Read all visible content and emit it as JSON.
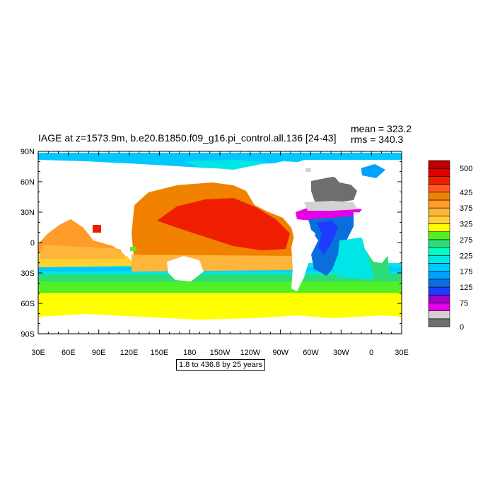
{
  "title": "IAGE at z=1573.9m, b.e20.B1850.f09_g16.pi_control.all.136 [24-43]",
  "stats": {
    "mean": "mean = 323.2",
    "rms": "rms = 340.3"
  },
  "range_note": "1.8 to 436.8 by 25 years",
  "lon_labels": [
    "30E",
    "60E",
    "90E",
    "120E",
    "150E",
    "180",
    "150W",
    "120W",
    "90W",
    "60W",
    "30W",
    "0",
    "30E"
  ],
  "lat_labels": [
    "90N",
    "60N",
    "30N",
    "0",
    "30S",
    "60S",
    "90S"
  ],
  "colorbar": {
    "colors": [
      "#6e6e6e",
      "#d2d2d2",
      "#e600e6",
      "#a000c8",
      "#1e3cff",
      "#0a6edc",
      "#00a0ff",
      "#00c8ff",
      "#00e6e6",
      "#00ffc0",
      "#2ddc78",
      "#50f028",
      "#ffff00",
      "#ffd232",
      "#ffb43c",
      "#ff9b28",
      "#f08200",
      "#ff5a1e",
      "#f01e00",
      "#dc0000",
      "#be0000"
    ],
    "labels": [
      "0",
      "75",
      "125",
      "175",
      "225",
      "275",
      "325",
      "375",
      "425",
      "500"
    ]
  },
  "chart_data": {
    "type": "heatmap",
    "title": "IAGE at z=1573.9m, b.e20.B1850.f09_g16.pi_control.all.136 [24-43]",
    "x_ticks": [
      "30E",
      "60E",
      "90E",
      "120E",
      "150E",
      "180",
      "150W",
      "120W",
      "90W",
      "60W",
      "30W",
      "0",
      "30E"
    ],
    "y_ticks": [
      "90N",
      "60N",
      "30N",
      "0",
      "30S",
      "60S",
      "90S"
    ],
    "mean": 323.2,
    "rms": 340.3,
    "data_range": [
      1.8,
      436.8
    ],
    "contour_interval": 25,
    "colorbar_labels": [
      0,
      75,
      125,
      175,
      225,
      275,
      325,
      375,
      425,
      500
    ]
  }
}
